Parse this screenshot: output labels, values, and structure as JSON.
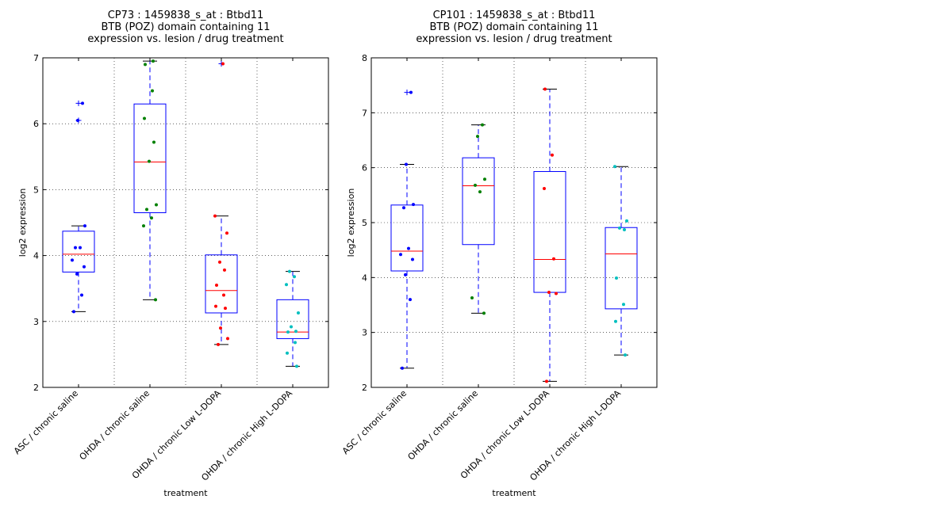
{
  "chart_data": [
    {
      "type": "box",
      "title": [
        "CP73 : 1459838_s_at : Btbd11",
        "BTB (POZ) domain containing 11",
        "expression vs. lesion / drug treatment"
      ],
      "xlabel": "treatment",
      "ylabel": "log2 expression",
      "ylim": [
        2,
        7
      ],
      "yticks": [
        "2",
        "3",
        "4",
        "5",
        "6",
        "7"
      ],
      "grid": true,
      "categories": [
        "ASC / chronic saline",
        "OHDA / chronic saline",
        "OHDA / chronic Low L-DOPA",
        "OHDA / chronic High L-DOPA"
      ],
      "colors": [
        "#0000ff",
        "#008000",
        "#ff0000",
        "#00bfbf"
      ],
      "boxes": [
        {
          "whisker_low": 3.15,
          "q1": 3.75,
          "median": 4.02,
          "q3": 4.37,
          "whisker_high": 4.45,
          "outliers": [
            6.05,
            6.31
          ],
          "points": [
            3.15,
            3.4,
            3.72,
            3.83,
            3.93,
            4.12,
            4.12,
            4.45,
            6.05,
            6.31
          ]
        },
        {
          "whisker_low": 3.33,
          "q1": 4.65,
          "median": 5.42,
          "q3": 6.3,
          "whisker_high": 6.95,
          "outliers": [],
          "points": [
            3.33,
            4.45,
            4.57,
            4.7,
            4.77,
            5.43,
            5.72,
            6.08,
            6.5,
            6.9,
            6.95
          ]
        },
        {
          "whisker_low": 2.65,
          "q1": 3.13,
          "median": 3.47,
          "q3": 4.01,
          "whisker_high": 4.6,
          "outliers": [
            6.91
          ],
          "points": [
            2.65,
            2.74,
            2.9,
            3.2,
            3.23,
            3.4,
            3.55,
            3.78,
            3.9,
            4.34,
            4.6,
            6.91
          ]
        },
        {
          "whisker_low": 2.32,
          "q1": 2.74,
          "median": 2.84,
          "q3": 3.33,
          "whisker_high": 3.76,
          "outliers": [],
          "points": [
            2.32,
            2.52,
            2.68,
            2.84,
            2.85,
            2.92,
            3.13,
            3.56,
            3.68,
            3.76
          ]
        }
      ]
    },
    {
      "type": "box",
      "title": [
        "CP101 : 1459838_s_at : Btbd11",
        "BTB (POZ) domain containing 11",
        "expression vs. lesion / drug treatment"
      ],
      "xlabel": "treatment",
      "ylabel": "log2 expression",
      "ylim": [
        2,
        8
      ],
      "yticks": [
        "2",
        "3",
        "4",
        "5",
        "6",
        "7",
        "8"
      ],
      "grid": true,
      "categories": [
        "ASC / chronic saline",
        "OHDA / chronic saline",
        "OHDA / chronic Low L-DOPA",
        "OHDA / chronic High L-DOPA"
      ],
      "colors": [
        "#0000ff",
        "#008000",
        "#ff0000",
        "#00bfbf"
      ],
      "boxes": [
        {
          "whisker_low": 2.35,
          "q1": 4.12,
          "median": 4.48,
          "q3": 5.32,
          "whisker_high": 6.06,
          "outliers": [
            7.37
          ],
          "points": [
            2.35,
            3.6,
            4.05,
            4.33,
            4.42,
            4.53,
            5.27,
            5.33,
            6.06,
            7.37
          ]
        },
        {
          "whisker_low": 3.35,
          "q1": 4.6,
          "median": 5.67,
          "q3": 6.18,
          "whisker_high": 6.78,
          "outliers": [],
          "points": [
            3.35,
            3.63,
            5.56,
            5.68,
            5.79,
            6.57,
            6.78
          ]
        },
        {
          "whisker_low": 2.11,
          "q1": 3.73,
          "median": 4.33,
          "q3": 5.93,
          "whisker_high": 7.43,
          "outliers": [],
          "points": [
            2.11,
            3.71,
            3.73,
            4.34,
            5.62,
            6.23,
            7.43
          ]
        },
        {
          "whisker_low": 2.59,
          "q1": 3.43,
          "median": 4.43,
          "q3": 4.91,
          "whisker_high": 6.02,
          "outliers": [],
          "points": [
            2.59,
            3.2,
            3.51,
            3.99,
            4.87,
            4.9,
            5.03,
            6.02
          ]
        }
      ]
    }
  ]
}
